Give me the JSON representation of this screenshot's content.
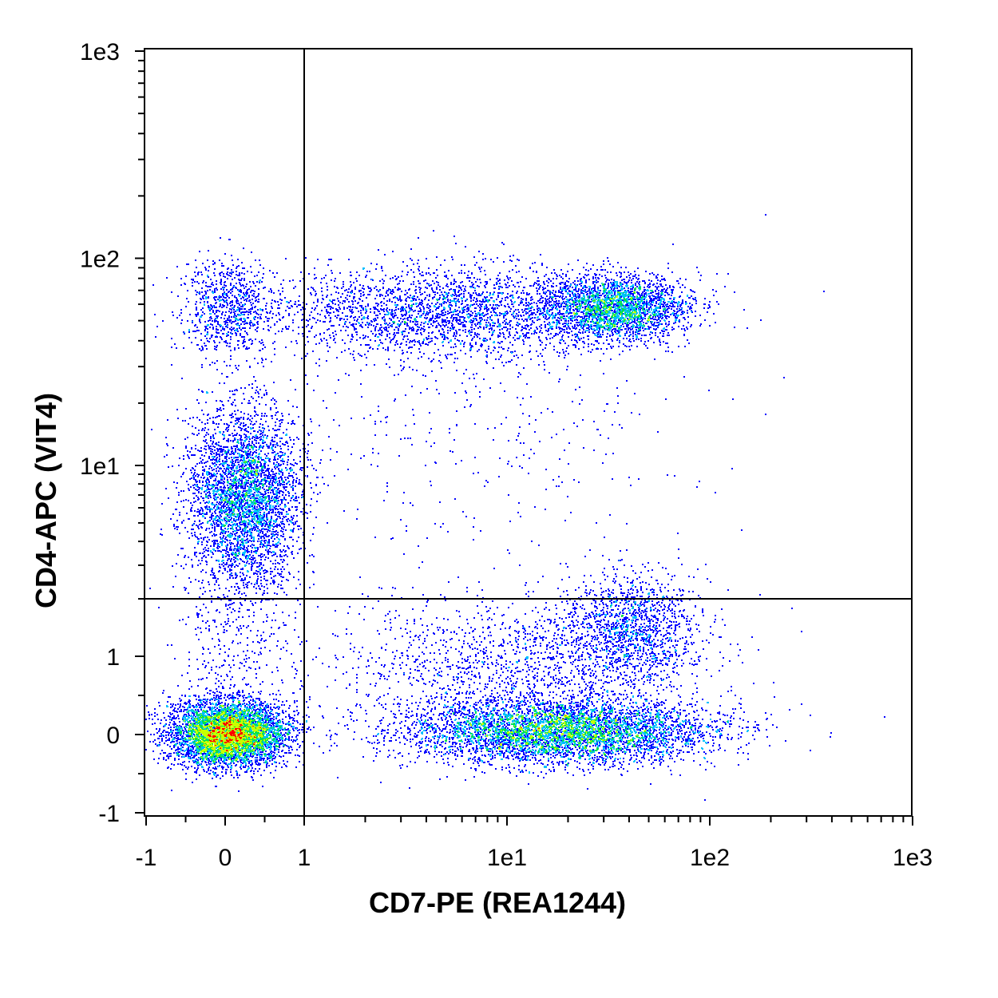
{
  "chart_data": {
    "type": "scatter",
    "subtype": "flow-cytometry-density-dot-plot",
    "title": "",
    "xlabel": "CD7-PE (REA1244)",
    "ylabel": "CD4-APC (VIT4)",
    "x_scale": "biexponential",
    "y_scale": "biexponential",
    "xlim": [
      -1,
      1000
    ],
    "ylim": [
      -1,
      1000
    ],
    "x_ticks": [
      {
        "value": -1,
        "label": "-1"
      },
      {
        "value": 0,
        "label": "0"
      },
      {
        "value": 1,
        "label": "1"
      },
      {
        "value": 10,
        "label": "1e1"
      },
      {
        "value": 100,
        "label": "1e2"
      },
      {
        "value": 1000,
        "label": "1e3"
      }
    ],
    "y_ticks": [
      {
        "value": -1,
        "label": "-1"
      },
      {
        "value": 0,
        "label": "0"
      },
      {
        "value": 1,
        "label": "1"
      },
      {
        "value": 10,
        "label": "1e1"
      },
      {
        "value": 100,
        "label": "1e2"
      },
      {
        "value": 1000,
        "label": "1e3"
      }
    ],
    "gate_lines": {
      "x": 1,
      "y": 2
    },
    "grid": false,
    "legend": "none",
    "density_colors": [
      "#0000ff",
      "#00bfff",
      "#00e050",
      "#c8ff00",
      "#ff0000"
    ],
    "populations": [
      {
        "x_center": 0,
        "y_center": 0,
        "relative_density": 1.0
      },
      {
        "x_center": 20,
        "y_center": 0,
        "relative_density": 0.55
      },
      {
        "x_center": 0.2,
        "y_center": 7,
        "relative_density": 0.45
      },
      {
        "x_center": 35,
        "y_center": 55,
        "relative_density": 0.35
      },
      {
        "x_center": 6,
        "y_center": 52,
        "relative_density": 0.2
      },
      {
        "x_center": 0,
        "y_center": 55,
        "relative_density": 0.12
      },
      {
        "x_center": 40,
        "y_center": 1.5,
        "relative_density": 0.15
      }
    ]
  }
}
